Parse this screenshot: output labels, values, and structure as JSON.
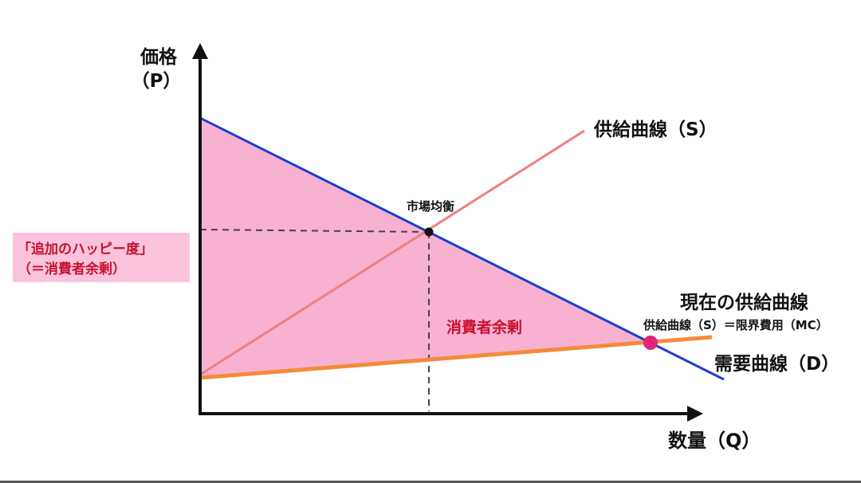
{
  "axes": {
    "y_label_line1": "価格",
    "y_label_line2": "（P）",
    "x_label": "数量（Q）"
  },
  "curves": {
    "supply": "供給曲線（S）",
    "current_supply": "現在の供給曲線",
    "current_supply_sub": "供給曲線（S）＝限界費用（MC）",
    "demand": "需要曲線（D）"
  },
  "labels": {
    "equilibrium": "市場均衡",
    "surplus_area": "消費者余剰",
    "happiness_line1": "「追加のハッピー度」",
    "happiness_line2": "（＝消費者余剰）"
  },
  "colors": {
    "surplus_fill": "#f9b1d2",
    "demand_line": "#1a3fcf",
    "supply_line": "#ee7f80",
    "current_supply_line": "#f58a3a",
    "intersection_point": "#e0267a",
    "label_highlight": "#fbc4dc"
  }
}
